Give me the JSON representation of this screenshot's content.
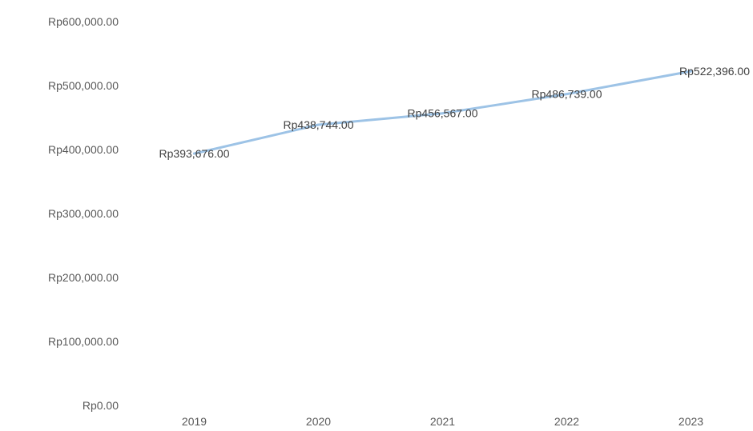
{
  "chart_data": {
    "type": "line",
    "title": "",
    "xlabel": "",
    "ylabel": "",
    "categories": [
      "2019",
      "2020",
      "2021",
      "2022",
      "2023"
    ],
    "series": [
      {
        "values": [
          393676,
          438744,
          456567,
          486739,
          522396
        ],
        "data_labels": [
          "Rp393,676.00",
          "Rp438,744.00",
          "Rp456,567.00",
          "Rp486,739.00",
          "Rp522,396.00"
        ],
        "color": "#9dc3e6"
      }
    ],
    "ylim": [
      0,
      600000
    ],
    "yticks": [
      0,
      100000,
      200000,
      300000,
      400000,
      500000,
      600000
    ],
    "ytick_labels": [
      "Rp0.00",
      "Rp100,000.00",
      "Rp200,000.00",
      "Rp300,000.00",
      "Rp400,000.00",
      "Rp500,000.00",
      "Rp600,000.00"
    ],
    "grid": false,
    "legend": "none"
  }
}
